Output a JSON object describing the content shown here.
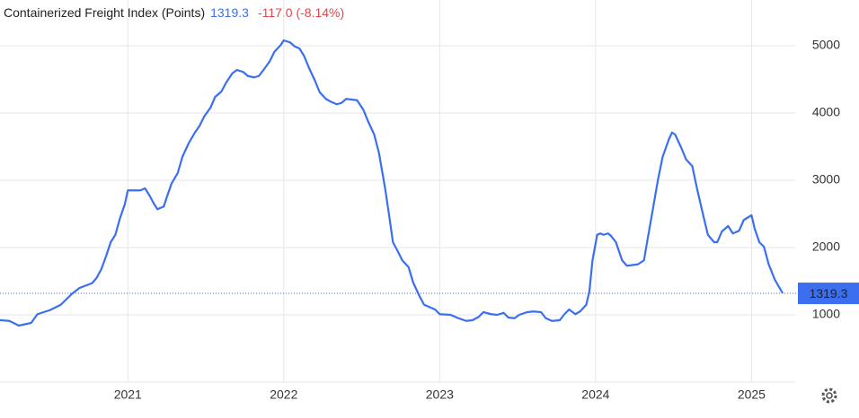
{
  "chart_data": {
    "type": "line",
    "title": "Containerized Freight Index (Points)",
    "change": "-117.0 (-8.14%)",
    "change_color": "#e0474c",
    "xlim": [
      2020.18,
      2025.28
    ],
    "xticks": [
      2021,
      2022,
      2023,
      2024,
      2025
    ],
    "ylim": [
      0,
      5680
    ],
    "yticks": [
      1000,
      2000,
      3000,
      4000,
      5000
    ],
    "grid": true,
    "series": [
      {
        "name": "Containerized Freight Index",
        "color": "#3b6ff0",
        "x": [
          2020.18,
          2020.24,
          2020.3,
          2020.38,
          2020.42,
          2020.5,
          2020.57,
          2020.64,
          2020.69,
          2020.77,
          2020.8,
          2020.83,
          2020.86,
          2020.89,
          2020.92,
          2020.95,
          2020.98,
          2021.0,
          2021.08,
          2021.11,
          2021.14,
          2021.17,
          2021.19,
          2021.23,
          2021.25,
          2021.28,
          2021.32,
          2021.35,
          2021.39,
          2021.43,
          2021.46,
          2021.49,
          2021.53,
          2021.56,
          2021.6,
          2021.63,
          2021.67,
          2021.7,
          2021.74,
          2021.77,
          2021.81,
          2021.84,
          2021.87,
          2021.91,
          2021.94,
          2021.98,
          2022.0,
          2022.04,
          2022.07,
          2022.1,
          2022.13,
          2022.16,
          2022.2,
          2022.23,
          2022.27,
          2022.3,
          2022.34,
          2022.37,
          2022.4,
          2022.47,
          2022.51,
          2022.54,
          2022.58,
          2022.61,
          2022.65,
          2022.68,
          2022.7,
          2022.73,
          2022.76,
          2022.8,
          2022.83,
          2022.87,
          2022.9,
          2022.97,
          2023.0,
          2023.07,
          2023.12,
          2023.17,
          2023.21,
          2023.25,
          2023.28,
          2023.33,
          2023.37,
          2023.41,
          2023.44,
          2023.48,
          2023.51,
          2023.56,
          2023.6,
          2023.65,
          2023.68,
          2023.72,
          2023.77,
          2023.8,
          2023.83,
          2023.87,
          2023.9,
          2023.94,
          2023.96,
          2023.98,
          2024.01,
          2024.03,
          2024.05,
          2024.08,
          2024.1,
          2024.13,
          2024.17,
          2024.2,
          2024.27,
          2024.31,
          2024.33,
          2024.37,
          2024.4,
          2024.43,
          2024.47,
          2024.49,
          2024.51,
          2024.55,
          2024.58,
          2024.62,
          2024.65,
          2024.69,
          2024.72,
          2024.76,
          2024.78,
          2024.81,
          2024.85,
          2024.88,
          2024.92,
          2024.95,
          2025.0,
          2025.02,
          2025.05,
          2025.08,
          2025.11,
          2025.15,
          2025.17,
          2025.2
        ],
        "values": [
          920,
          910,
          840,
          880,
          1010,
          1070,
          1150,
          1310,
          1400,
          1470,
          1550,
          1680,
          1870,
          2080,
          2190,
          2440,
          2640,
          2850,
          2850,
          2880,
          2770,
          2640,
          2570,
          2610,
          2750,
          2950,
          3110,
          3350,
          3550,
          3710,
          3810,
          3950,
          4080,
          4240,
          4320,
          4450,
          4590,
          4640,
          4610,
          4550,
          4530,
          4550,
          4640,
          4770,
          4910,
          5010,
          5080,
          5050,
          4990,
          4960,
          4850,
          4680,
          4480,
          4310,
          4210,
          4170,
          4130,
          4150,
          4210,
          4190,
          4050,
          3880,
          3680,
          3410,
          2880,
          2410,
          2080,
          1950,
          1810,
          1710,
          1480,
          1280,
          1150,
          1080,
          1010,
          1000,
          950,
          910,
          920,
          970,
          1040,
          1010,
          1000,
          1030,
          960,
          950,
          1000,
          1040,
          1050,
          1040,
          950,
          910,
          920,
          1010,
          1080,
          1010,
          1050,
          1150,
          1350,
          1810,
          2190,
          2210,
          2190,
          2210,
          2170,
          2080,
          1810,
          1730,
          1750,
          1810,
          2080,
          2610,
          3010,
          3350,
          3610,
          3710,
          3680,
          3480,
          3310,
          3210,
          2880,
          2480,
          2190,
          2080,
          2080,
          2240,
          2320,
          2210,
          2250,
          2410,
          2480,
          2280,
          2080,
          2010,
          1750,
          1520,
          1440,
          1319.3
        ]
      }
    ]
  }
}
